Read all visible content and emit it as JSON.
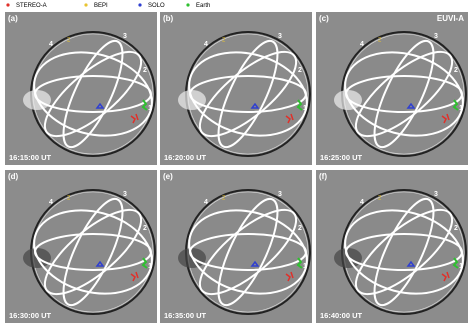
{
  "legend": [
    {
      "label": "STEREO-A",
      "color": "#e0302a"
    },
    {
      "label": "BEPI",
      "color": "#e8c430"
    },
    {
      "label": "SOLO",
      "color": "#2f3fd0"
    },
    {
      "label": "Earth",
      "color": "#2fc030"
    }
  ],
  "instrument": "EUVI-A",
  "panels": [
    {
      "label": "(a)",
      "time": "16:15:00 UT",
      "numbers": [
        "1",
        "2",
        "3",
        "4"
      ]
    },
    {
      "label": "(b)",
      "time": "16:20:00 UT",
      "numbers": [
        "1",
        "2",
        "3",
        "4"
      ]
    },
    {
      "label": "(c)",
      "time": "16:25:00 UT",
      "numbers": [
        "1",
        "2",
        "3",
        "4"
      ]
    },
    {
      "label": "(d)",
      "time": "16:30:00 UT",
      "numbers": [
        "1",
        "2",
        "3",
        "4"
      ]
    },
    {
      "label": "(e)",
      "time": "16:35:00 UT",
      "numbers": [
        "1",
        "2",
        "3",
        "4"
      ]
    },
    {
      "label": "(f)",
      "time": "16:40:00 UT",
      "numbers": [
        "1",
        "2",
        "3",
        "4"
      ]
    }
  ]
}
